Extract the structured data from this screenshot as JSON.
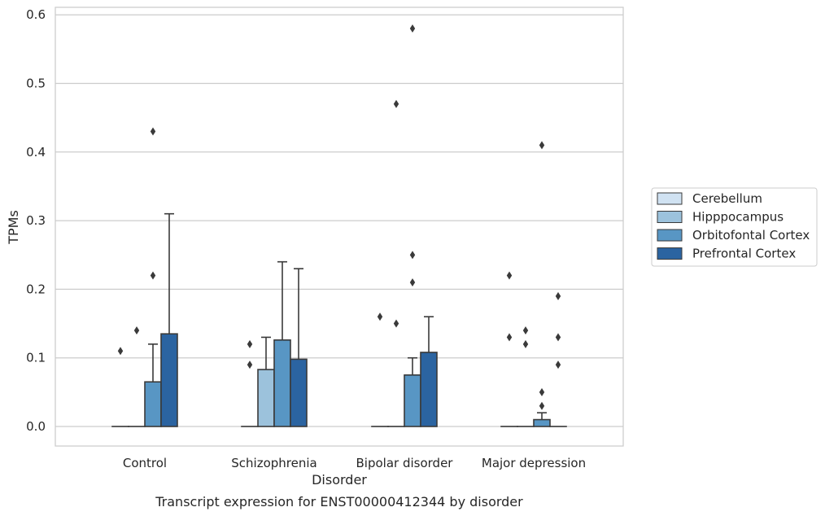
{
  "chart_data": {
    "type": "bar",
    "title": "",
    "caption": "Transcript expression for ENST00000412344 by disorder",
    "xlabel": "Disorder",
    "ylabel": "TPMs",
    "ylim": [
      -0.028,
      0.612
    ],
    "yticks": [
      "0.0",
      "0.1",
      "0.2",
      "0.3",
      "0.4",
      "0.5",
      "0.6"
    ],
    "grid": true,
    "legend_position": "right",
    "categories": [
      "Control",
      "Schizophrenia",
      "Bipolar disorder",
      "Major depression"
    ],
    "series": [
      {
        "name": "Cerebellum",
        "color": "#d0e2f2",
        "values": [
          0.0,
          0.0,
          0.0,
          0.0
        ],
        "error_upper": [
          null,
          null,
          null,
          null
        ],
        "outliers": [
          [
            0.11
          ],
          [
            0.09,
            0.12
          ],
          [
            0.16
          ],
          [
            0.13,
            0.22
          ]
        ]
      },
      {
        "name": "Hipppocampus",
        "color": "#9cc2dc",
        "values": [
          0.0,
          0.083,
          0.0,
          0.0
        ],
        "error_upper": [
          null,
          0.13,
          null,
          null
        ],
        "outliers": [
          [
            0.14
          ],
          [],
          [
            0.15,
            0.47
          ],
          [
            0.12,
            0.14
          ]
        ]
      },
      {
        "name": "Orbitofontal Cortex",
        "color": "#5896c4",
        "values": [
          0.065,
          0.126,
          0.075,
          0.01
        ],
        "error_upper": [
          0.12,
          0.24,
          0.1,
          0.02
        ],
        "outliers": [
          [
            0.22,
            0.43
          ],
          [],
          [
            0.21,
            0.25,
            0.58
          ],
          [
            0.03,
            0.05,
            0.41
          ]
        ]
      },
      {
        "name": "Prefrontal Cortex",
        "color": "#2b64a1",
        "values": [
          0.135,
          0.098,
          0.108,
          0.0
        ],
        "error_upper": [
          0.31,
          0.23,
          0.16,
          null
        ],
        "outliers": [
          [],
          [],
          [],
          [
            0.09,
            0.13,
            0.19
          ]
        ]
      }
    ]
  }
}
